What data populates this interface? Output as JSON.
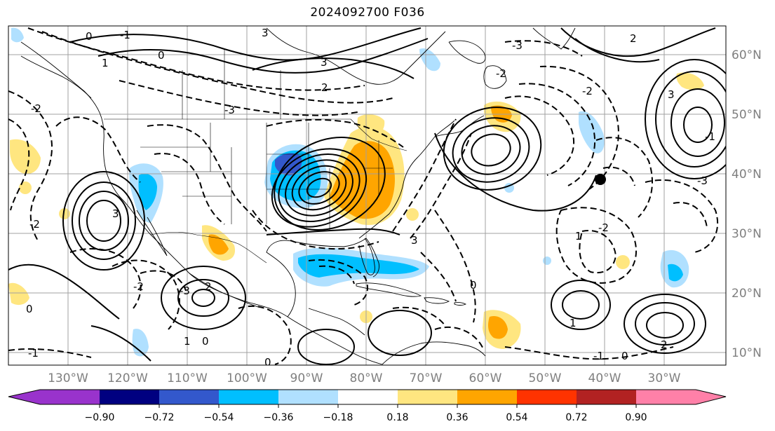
{
  "title": "2024092700 F036",
  "lon_labels": [
    "130°W",
    "120°W",
    "110°W",
    "100°W",
    "90°W",
    "80°W",
    "70°W",
    "60°W",
    "50°W",
    "40°W",
    "30°W"
  ],
  "lat_labels": [
    "60°N",
    "50°N",
    "40°N",
    "30°N",
    "20°N",
    "10°N"
  ],
  "colorbar": {
    "ticks": [
      "−0.90",
      "−0.72",
      "−0.54",
      "−0.36",
      "−0.18",
      "0.18",
      "0.36",
      "0.54",
      "0.72",
      "0.90"
    ],
    "colors": [
      "#9933cc",
      "#000080",
      "#3358cc",
      "#00bfff",
      "#b0e0ff",
      "#ffffff",
      "#ffe680",
      "#ffa500",
      "#ff3300",
      "#b22222",
      "#ff80a8"
    ]
  },
  "contour_labels": [
    "0",
    "1",
    "3",
    "3",
    "-3",
    "-2",
    "2",
    "0",
    "-1",
    "-2",
    "-3",
    "2",
    "-2",
    "3",
    "1",
    "3",
    "0",
    "-2",
    "2",
    "-3",
    "-2",
    "0",
    "-2",
    "-1",
    "1",
    "0",
    "2",
    "-1",
    "-3",
    "0",
    "1",
    "0",
    "-1",
    "3"
  ],
  "marker": {
    "lon": -39,
    "lat": 39
  }
}
